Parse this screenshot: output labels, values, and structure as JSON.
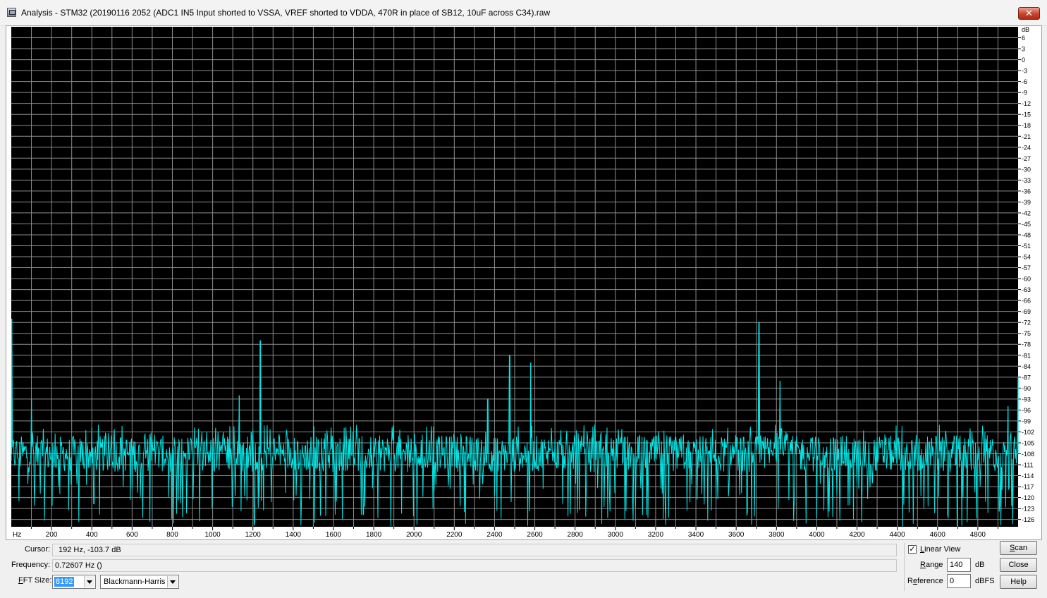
{
  "window": {
    "title": "Analysis - STM32 (20190116 2052 (ADC1 IN5 Input shorted to VSSA, VREF shorted to VDDA, 470R in place of SB12, 10uF across C34).raw",
    "close_glyph": "✕"
  },
  "chart_data": {
    "type": "line",
    "title": "",
    "xlabel": "Hz",
    "ylabel": "dB",
    "xlim": [
      0,
      5000
    ],
    "ylim": [
      -128,
      9
    ],
    "x_ticks": [
      200,
      400,
      600,
      800,
      1000,
      1200,
      1400,
      1600,
      1800,
      2000,
      2200,
      2400,
      2600,
      2800,
      3000,
      3200,
      3400,
      3600,
      3800,
      4000,
      4200,
      4400,
      4600,
      4800
    ],
    "y_ticks": [
      6,
      3,
      0,
      -3,
      -6,
      -9,
      -12,
      -15,
      -18,
      -21,
      -24,
      -27,
      -30,
      -33,
      -36,
      -39,
      -42,
      -45,
      -48,
      -51,
      -54,
      -57,
      -60,
      -63,
      -66,
      -69,
      -72,
      -75,
      -78,
      -81,
      -84,
      -87,
      -90,
      -93,
      -96,
      -99,
      -102,
      -105,
      -108,
      -111,
      -114,
      -117,
      -120,
      -123,
      -126
    ],
    "grid": true,
    "background": "#000000",
    "grid_color": "#8c8c8c",
    "trace_color": "#00e5e5",
    "noise_floor_db": -108,
    "peaks": [
      {
        "x": 2,
        "y": -71
      },
      {
        "x": 100,
        "y": -93
      },
      {
        "x": 1132,
        "y": -92
      },
      {
        "x": 1237,
        "y": -77
      },
      {
        "x": 2366,
        "y": -93
      },
      {
        "x": 2475,
        "y": -81
      },
      {
        "x": 2580,
        "y": -83
      },
      {
        "x": 3713,
        "y": -72
      },
      {
        "x": 3818,
        "y": -88
      },
      {
        "x": 4950,
        "y": -95
      },
      {
        "x": 5000,
        "y": -87
      }
    ]
  },
  "status": {
    "cursor_label": "Cursor:",
    "cursor_value": "192 Hz, -103.7 dB",
    "frequency_label": "Frequency:",
    "frequency_value": "0.72607 Hz ()"
  },
  "fft": {
    "label_underlined": "F",
    "label_rest": "FT Size:",
    "size": "8192",
    "window": "Blackmann-Harris"
  },
  "options": {
    "linear_view_checked": true,
    "linear_view_check_glyph": "✓",
    "linear_view_underlined": "L",
    "linear_view_rest": "inear View",
    "range_underlined": "R",
    "range_rest": "ange",
    "range_value": "140",
    "range_unit": "dB",
    "reference_pre": "R",
    "reference_underlined": "e",
    "reference_rest": "ference",
    "reference_value": "0",
    "reference_unit": "dBFS"
  },
  "buttons": {
    "scan_underlined": "S",
    "scan_rest": "can",
    "close": "Close",
    "help": "Help"
  }
}
